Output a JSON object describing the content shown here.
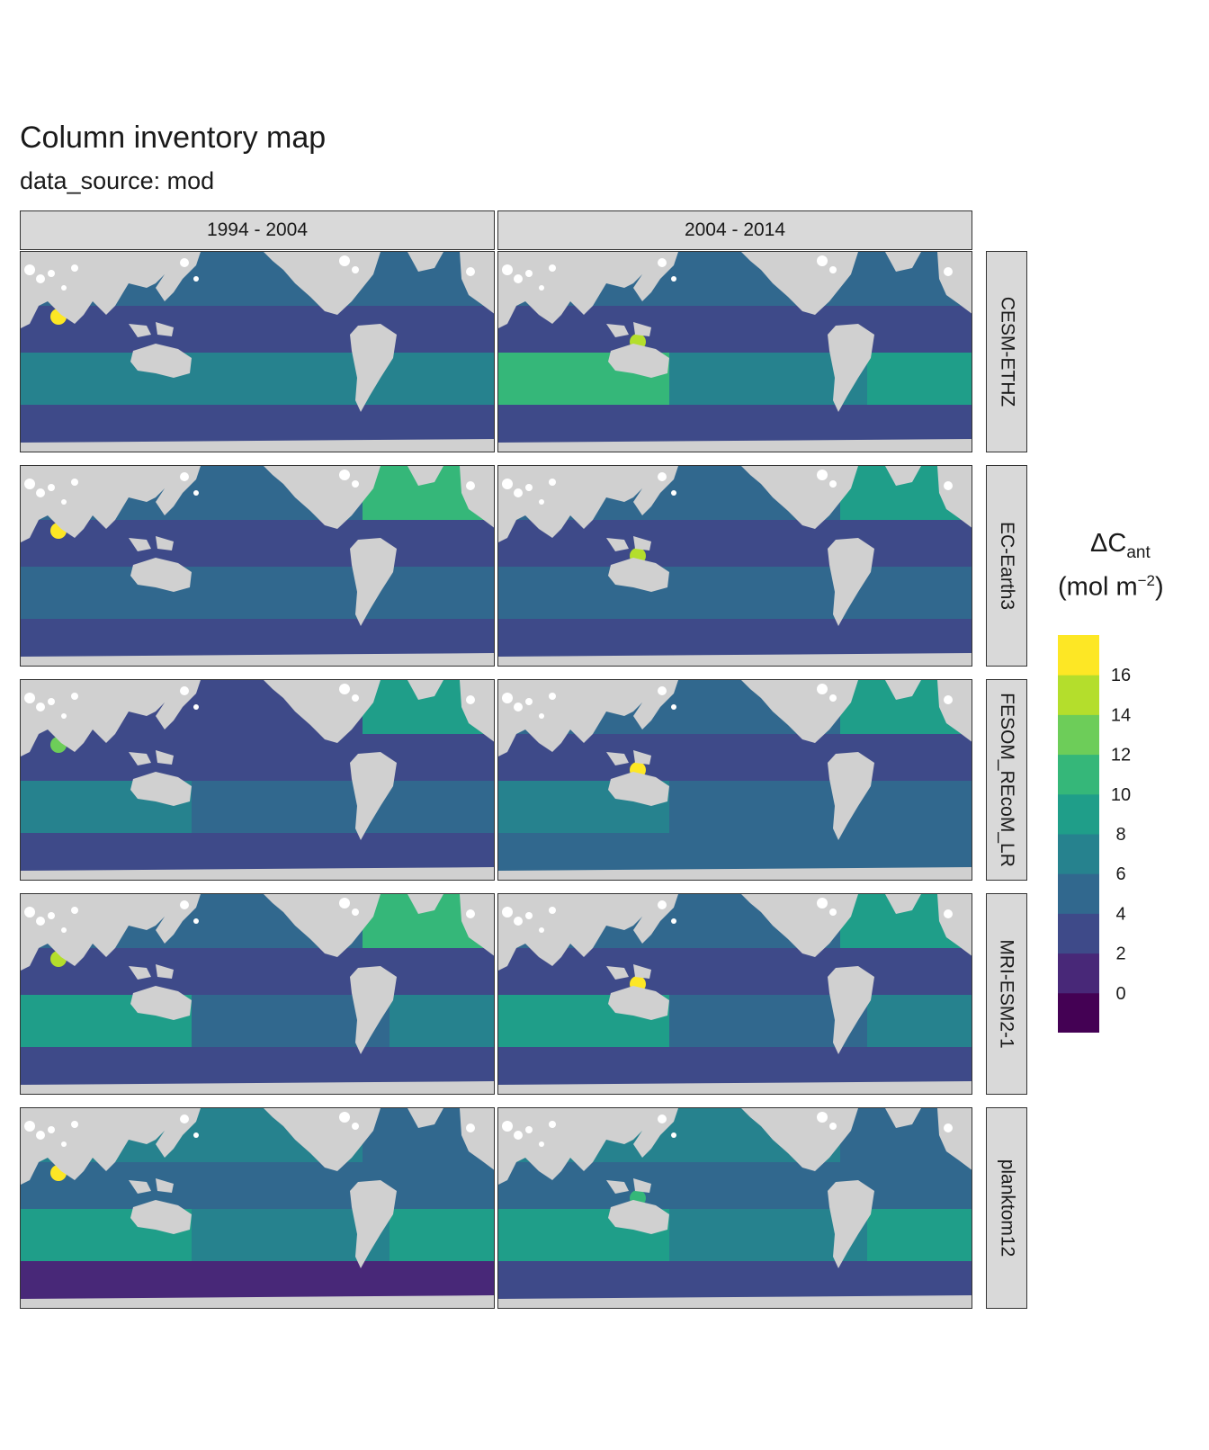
{
  "title": "Column inventory map",
  "subtitle": "data_source: mod",
  "chart_data": {
    "type": "heatmap",
    "facet_columns": [
      "1994 - 2004",
      "2004 - 2014"
    ],
    "facet_rows": [
      "CESM-ETHZ",
      "EC-Earth3",
      "FESOM_REcoM_LR",
      "MRI-ESM2-1",
      "planktom12"
    ],
    "legend": {
      "title": "ΔC",
      "title_sub": "ant",
      "unit_prefix": "(mol m",
      "unit_sup": "−2",
      "unit_suffix": ")",
      "breaks": [
        -2,
        0,
        2,
        4,
        6,
        8,
        10,
        12,
        14,
        16,
        18
      ],
      "tick_labels": [
        "0",
        "2",
        "4",
        "6",
        "8",
        "10",
        "12",
        "14",
        "16"
      ],
      "colors": [
        "#440154",
        "#482878",
        "#3e4a89",
        "#31688e",
        "#26828e",
        "#1f9e89",
        "#35b779",
        "#6dcd59",
        "#b4de2c",
        "#fde725"
      ],
      "placement": "right"
    },
    "land_color": "#d0d0d0",
    "panels": [
      {
        "column": "1994 - 2004",
        "row": "CESM-ETHZ",
        "levels": {
          "north_pacific": 4,
          "tropics": 3,
          "south_indian": 7,
          "south_pacific": 6,
          "south_atlantic": 7,
          "north_atlantic": 5,
          "southern_ocean": 2,
          "hotspot": 17
        }
      },
      {
        "column": "2004 - 2014",
        "row": "CESM-ETHZ",
        "levels": {
          "north_pacific": 4,
          "tropics": 3,
          "south_indian": 10,
          "south_pacific": 7,
          "south_atlantic": 8,
          "north_atlantic": 5,
          "southern_ocean": 3,
          "hotspot": 14
        }
      },
      {
        "column": "1994 - 2004",
        "row": "EC-Earth3",
        "levels": {
          "north_pacific": 4,
          "tropics": 3,
          "south_indian": 5,
          "south_pacific": 4,
          "south_atlantic": 5,
          "north_atlantic": 10,
          "southern_ocean": 2,
          "hotspot": 17
        }
      },
      {
        "column": "2004 - 2014",
        "row": "EC-Earth3",
        "levels": {
          "north_pacific": 4,
          "tropics": 3,
          "south_indian": 5,
          "south_pacific": 4,
          "south_atlantic": 5,
          "north_atlantic": 8,
          "southern_ocean": 2,
          "hotspot": 15
        }
      },
      {
        "column": "1994 - 2004",
        "row": "FESOM_REcoM_LR",
        "levels": {
          "north_pacific": 3,
          "tropics": 2,
          "south_indian": 6,
          "south_pacific": 4,
          "south_atlantic": 5,
          "north_atlantic": 9,
          "southern_ocean": 3,
          "hotspot": 13
        }
      },
      {
        "column": "2004 - 2014",
        "row": "FESOM_REcoM_LR",
        "levels": {
          "north_pacific": 4,
          "tropics": 3,
          "south_indian": 7,
          "south_pacific": 5,
          "south_atlantic": 5,
          "north_atlantic": 8,
          "southern_ocean": 4,
          "hotspot": 17
        }
      },
      {
        "column": "1994 - 2004",
        "row": "MRI-ESM2-1",
        "levels": {
          "north_pacific": 4,
          "tropics": 3,
          "south_indian": 8,
          "south_pacific": 5,
          "south_atlantic": 6,
          "north_atlantic": 10,
          "southern_ocean": 3,
          "hotspot": 14
        }
      },
      {
        "column": "2004 - 2014",
        "row": "MRI-ESM2-1",
        "levels": {
          "north_pacific": 4,
          "tropics": 3,
          "south_indian": 9,
          "south_pacific": 5,
          "south_atlantic": 7,
          "north_atlantic": 8,
          "southern_ocean": 3,
          "hotspot": 17
        }
      },
      {
        "column": "1994 - 2004",
        "row": "planktom12",
        "levels": {
          "north_pacific": 7,
          "tropics": 5,
          "south_indian": 9,
          "south_pacific": 7,
          "south_atlantic": 8,
          "north_atlantic": 5,
          "southern_ocean": 0,
          "hotspot": 17
        }
      },
      {
        "column": "2004 - 2014",
        "row": "planktom12",
        "levels": {
          "north_pacific": 7,
          "tropics": 5,
          "south_indian": 8,
          "south_pacific": 7,
          "south_atlantic": 9,
          "north_atlantic": 5,
          "southern_ocean": 2,
          "hotspot": 10
        }
      }
    ]
  }
}
